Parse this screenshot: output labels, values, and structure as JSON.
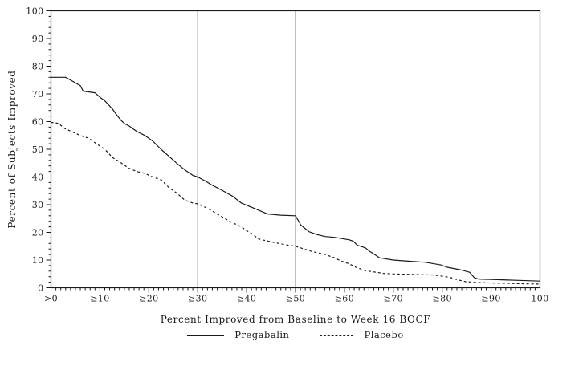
{
  "page": {
    "background": "#ffffff"
  },
  "chart_data": {
    "type": "line",
    "title": "",
    "xlabel": "Percent Improved from Baseline to Week 16 BOCF",
    "ylabel": "Percent of Subjects Improved",
    "xlim": [
      0,
      100
    ],
    "ylim": [
      0,
      100
    ],
    "grid": false,
    "legend_position": "bottom",
    "x_major_ticks": [
      0,
      10,
      20,
      30,
      40,
      50,
      60,
      70,
      80,
      90,
      100
    ],
    "x_tick_labels": [
      ">0",
      "≥10",
      "≥20",
      "≥30",
      "≥40",
      "≥50",
      "≥60",
      "≥70",
      "≥80",
      "≥90",
      "100"
    ],
    "x_minor_step": 1,
    "y_major_step": 10,
    "y_minor_step": 2,
    "y_tick_labels": [
      "0",
      "10",
      "20",
      "30",
      "40",
      "50",
      "60",
      "70",
      "80",
      "90",
      "100"
    ],
    "reference_lines_x": [
      30,
      50
    ],
    "colors": {
      "series_line": "#1a1a1a",
      "reference_line": "#ababab",
      "axis": "#1a1a1a",
      "background": "#ffffff"
    },
    "series": [
      {
        "name": "Pregabalin",
        "line_style": "solid",
        "points": [
          [
            0,
            76
          ],
          [
            3,
            76
          ],
          [
            4.5,
            74.5
          ],
          [
            6,
            73
          ],
          [
            6.6,
            71
          ],
          [
            9,
            70.4
          ],
          [
            10,
            68.8
          ],
          [
            11,
            67.5
          ],
          [
            11.5,
            66.6
          ],
          [
            12.6,
            64.5
          ],
          [
            13.4,
            62.5
          ],
          [
            14.3,
            60.5
          ],
          [
            15.1,
            59.2
          ],
          [
            16,
            58.4
          ],
          [
            16.7,
            57.5
          ],
          [
            17.5,
            56.5
          ],
          [
            19.2,
            55
          ],
          [
            20.8,
            53
          ],
          [
            22.5,
            50
          ],
          [
            24.1,
            47.5
          ],
          [
            25.7,
            45
          ],
          [
            27.4,
            42.5
          ],
          [
            29,
            40.6
          ],
          [
            30,
            40
          ],
          [
            31.5,
            38.6
          ],
          [
            32.8,
            37.2
          ],
          [
            35,
            35.2
          ],
          [
            37.2,
            33
          ],
          [
            38.9,
            30.6
          ],
          [
            40,
            29.8
          ],
          [
            42.1,
            28.3
          ],
          [
            44.3,
            26.6
          ],
          [
            47,
            26.2
          ],
          [
            50,
            26
          ],
          [
            51.1,
            22.6
          ],
          [
            52.8,
            20.2
          ],
          [
            54.4,
            19.2
          ],
          [
            56.1,
            18.5
          ],
          [
            58,
            18.2
          ],
          [
            61,
            17.3
          ],
          [
            61.8,
            16.8
          ],
          [
            62.6,
            15.4
          ],
          [
            64.3,
            14.4
          ],
          [
            65.1,
            13.2
          ],
          [
            66,
            12.2
          ],
          [
            67.2,
            10.8
          ],
          [
            70,
            10
          ],
          [
            73,
            9.6
          ],
          [
            76.6,
            9.2
          ],
          [
            79.8,
            8.2
          ],
          [
            81,
            7.4
          ],
          [
            83.7,
            6.5
          ],
          [
            85.6,
            5.6
          ],
          [
            86.6,
            3.6
          ],
          [
            87.5,
            3.1
          ],
          [
            90,
            3
          ],
          [
            95,
            2.7
          ],
          [
            100,
            2.4
          ]
        ]
      },
      {
        "name": "Placebo",
        "line_style": "dashed",
        "points": [
          [
            0,
            59.7
          ],
          [
            1.5,
            59.4
          ],
          [
            2.8,
            57.5
          ],
          [
            4.5,
            56.2
          ],
          [
            6,
            55
          ],
          [
            7.7,
            54
          ],
          [
            9.3,
            52
          ],
          [
            11,
            50
          ],
          [
            12.6,
            47
          ],
          [
            14,
            45.5
          ],
          [
            15.9,
            43.2
          ],
          [
            17.5,
            42
          ],
          [
            19.2,
            41.3
          ],
          [
            20.8,
            40
          ],
          [
            22.5,
            39
          ],
          [
            24.1,
            36.2
          ],
          [
            25.7,
            34.2
          ],
          [
            27.4,
            31.6
          ],
          [
            29,
            30.6
          ],
          [
            30,
            30.3
          ],
          [
            31,
            29.5
          ],
          [
            32.3,
            28.4
          ],
          [
            34,
            26.6
          ],
          [
            35.6,
            25
          ],
          [
            37,
            23.6
          ],
          [
            38.9,
            22
          ],
          [
            40,
            20.6
          ],
          [
            41,
            19.6
          ],
          [
            42.5,
            17.6
          ],
          [
            44,
            17
          ],
          [
            46,
            16.2
          ],
          [
            48,
            15.5
          ],
          [
            50,
            15
          ],
          [
            52.8,
            13.4
          ],
          [
            54.5,
            12.6
          ],
          [
            56.1,
            12
          ],
          [
            57.7,
            11
          ],
          [
            59.3,
            9.7
          ],
          [
            61,
            8.6
          ],
          [
            62.6,
            7.2
          ],
          [
            64.3,
            6.2
          ],
          [
            66,
            5.7
          ],
          [
            68,
            5.2
          ],
          [
            70,
            5
          ],
          [
            74,
            4.8
          ],
          [
            78.2,
            4.6
          ],
          [
            81.5,
            3.8
          ],
          [
            83.1,
            2.9
          ],
          [
            84.8,
            2.2
          ],
          [
            87,
            1.9
          ],
          [
            90,
            1.7
          ],
          [
            95,
            1.5
          ],
          [
            100,
            1.3
          ]
        ]
      }
    ]
  }
}
